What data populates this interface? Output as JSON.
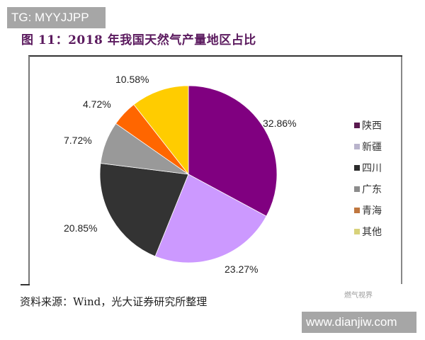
{
  "watermarks": {
    "top": "TG: MYYJJPP",
    "bottom": "www.dianjiw.com",
    "wechat": "燃气视界"
  },
  "figure": {
    "title": "图 11：2018 年我国天然气产量地区占比",
    "source": "资料来源：Wind，光大证券研究所整理"
  },
  "chart_data": {
    "type": "pie",
    "title": "图 11：2018 年我国天然气产量地区占比",
    "start_angle": "12 o'clock, clockwise",
    "legend_position": "right",
    "categories": [
      "陕西",
      "新疆",
      "四川",
      "广东",
      "青海",
      "其他"
    ],
    "values": [
      32.86,
      23.27,
      20.85,
      7.72,
      4.72,
      10.58
    ],
    "labels": [
      "32.86%",
      "23.27%",
      "20.85%",
      "7.72%",
      "4.72%",
      "10.58%"
    ],
    "colors": [
      "#800080",
      "#cc99ff",
      "#333333",
      "#999999",
      "#ff6600",
      "#ffcc00"
    ],
    "unit": "%"
  },
  "legend": {
    "items": [
      {
        "label": "陕西",
        "color": "#5a1a4f"
      },
      {
        "label": "新疆",
        "color": "#b9b4cc"
      },
      {
        "label": "四川",
        "color": "#2b2b2b"
      },
      {
        "label": "广东",
        "color": "#8c8c8c"
      },
      {
        "label": "青海",
        "color": "#c0773f"
      },
      {
        "label": "其他",
        "color": "#d8d27a"
      }
    ]
  }
}
